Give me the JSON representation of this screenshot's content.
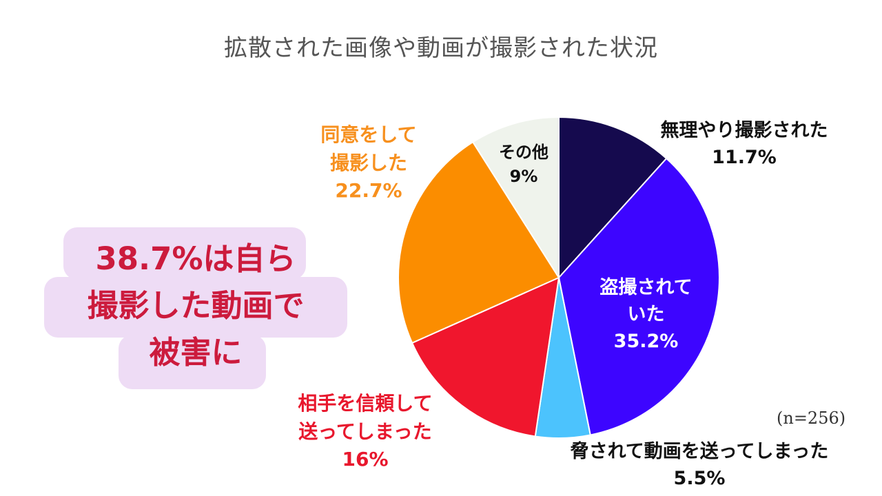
{
  "chart_data": {
    "type": "pie",
    "title": "拡散された画像や動画が撮影された状況",
    "slices": [
      {
        "lines": [
          "無理やり撮影された",
          "11.7%"
        ],
        "value": 11.7,
        "color": "#150a4e",
        "text_color": "#111111"
      },
      {
        "lines": [
          "盗撮されて",
          "いた",
          "35.2%"
        ],
        "value": 35.2,
        "color": "#3d05ff",
        "text_color": "#ffffff"
      },
      {
        "lines": [
          "脅されて動画を送ってしまった",
          "5.5%"
        ],
        "value": 5.5,
        "color": "#4cc3fd",
        "text_color": "#111111"
      },
      {
        "lines": [
          "相手を信頼して",
          "送ってしまった",
          "16%"
        ],
        "value": 16,
        "color": "#f0162d",
        "text_color": "#e8172d"
      },
      {
        "lines": [
          "同意をして",
          "撮影した",
          "22.7%"
        ],
        "value": 22.7,
        "color": "#fb8d00",
        "text_color": "#f7901e"
      },
      {
        "lines": [
          "その他",
          "9%"
        ],
        "value": 9,
        "color": "#eff3ec",
        "text_color": "#111111"
      }
    ],
    "legend": "none",
    "note": "(n=256)"
  },
  "callout": {
    "lines": [
      "38.7%は自ら",
      "撮影した動画で",
      "被害に"
    ],
    "background": "#eedcf5",
    "text_color": "#cc1b3d"
  }
}
